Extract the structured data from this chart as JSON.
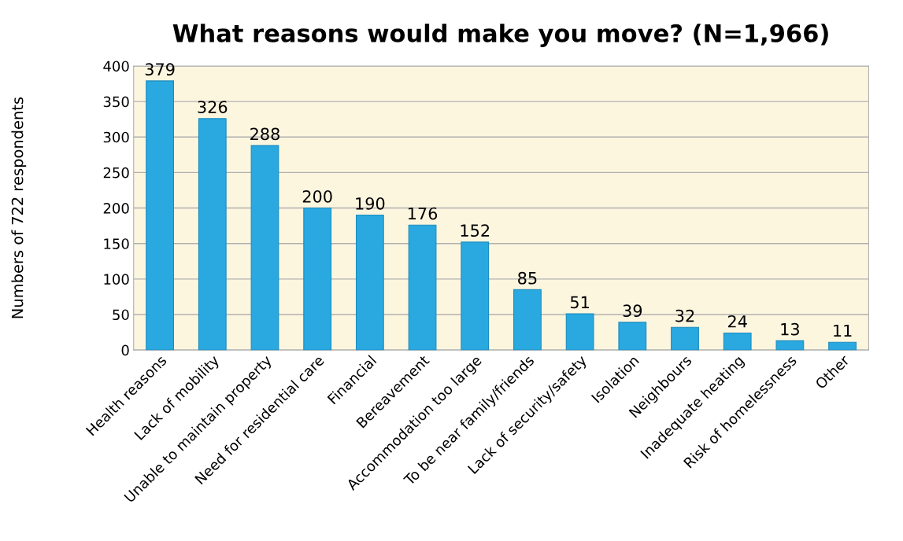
{
  "chart_data": {
    "type": "bar",
    "title": "What reasons would make you move? (N=1,966)",
    "ylabel": "Numbers of 722 respondents",
    "categories": [
      "Health reasons",
      "Lack of mobility",
      "Unable to maintain property",
      "Need for residential care",
      "Financial",
      "Bereavement",
      "Accommodation too large",
      "To be near family/friends",
      "Lack of security/safety",
      "Isolation",
      "Neighbours",
      "Inadequate heating",
      "Risk of homelessness",
      "Other"
    ],
    "values": [
      379,
      326,
      288,
      200,
      190,
      176,
      152,
      85,
      51,
      39,
      32,
      24,
      13,
      11
    ],
    "color": "#2aa9e0",
    "ylim": [
      0,
      400
    ],
    "yticks": [
      0,
      50,
      100,
      150,
      200,
      250,
      300,
      350,
      400
    ],
    "grid": "y",
    "data_labels": true,
    "legend": false
  }
}
